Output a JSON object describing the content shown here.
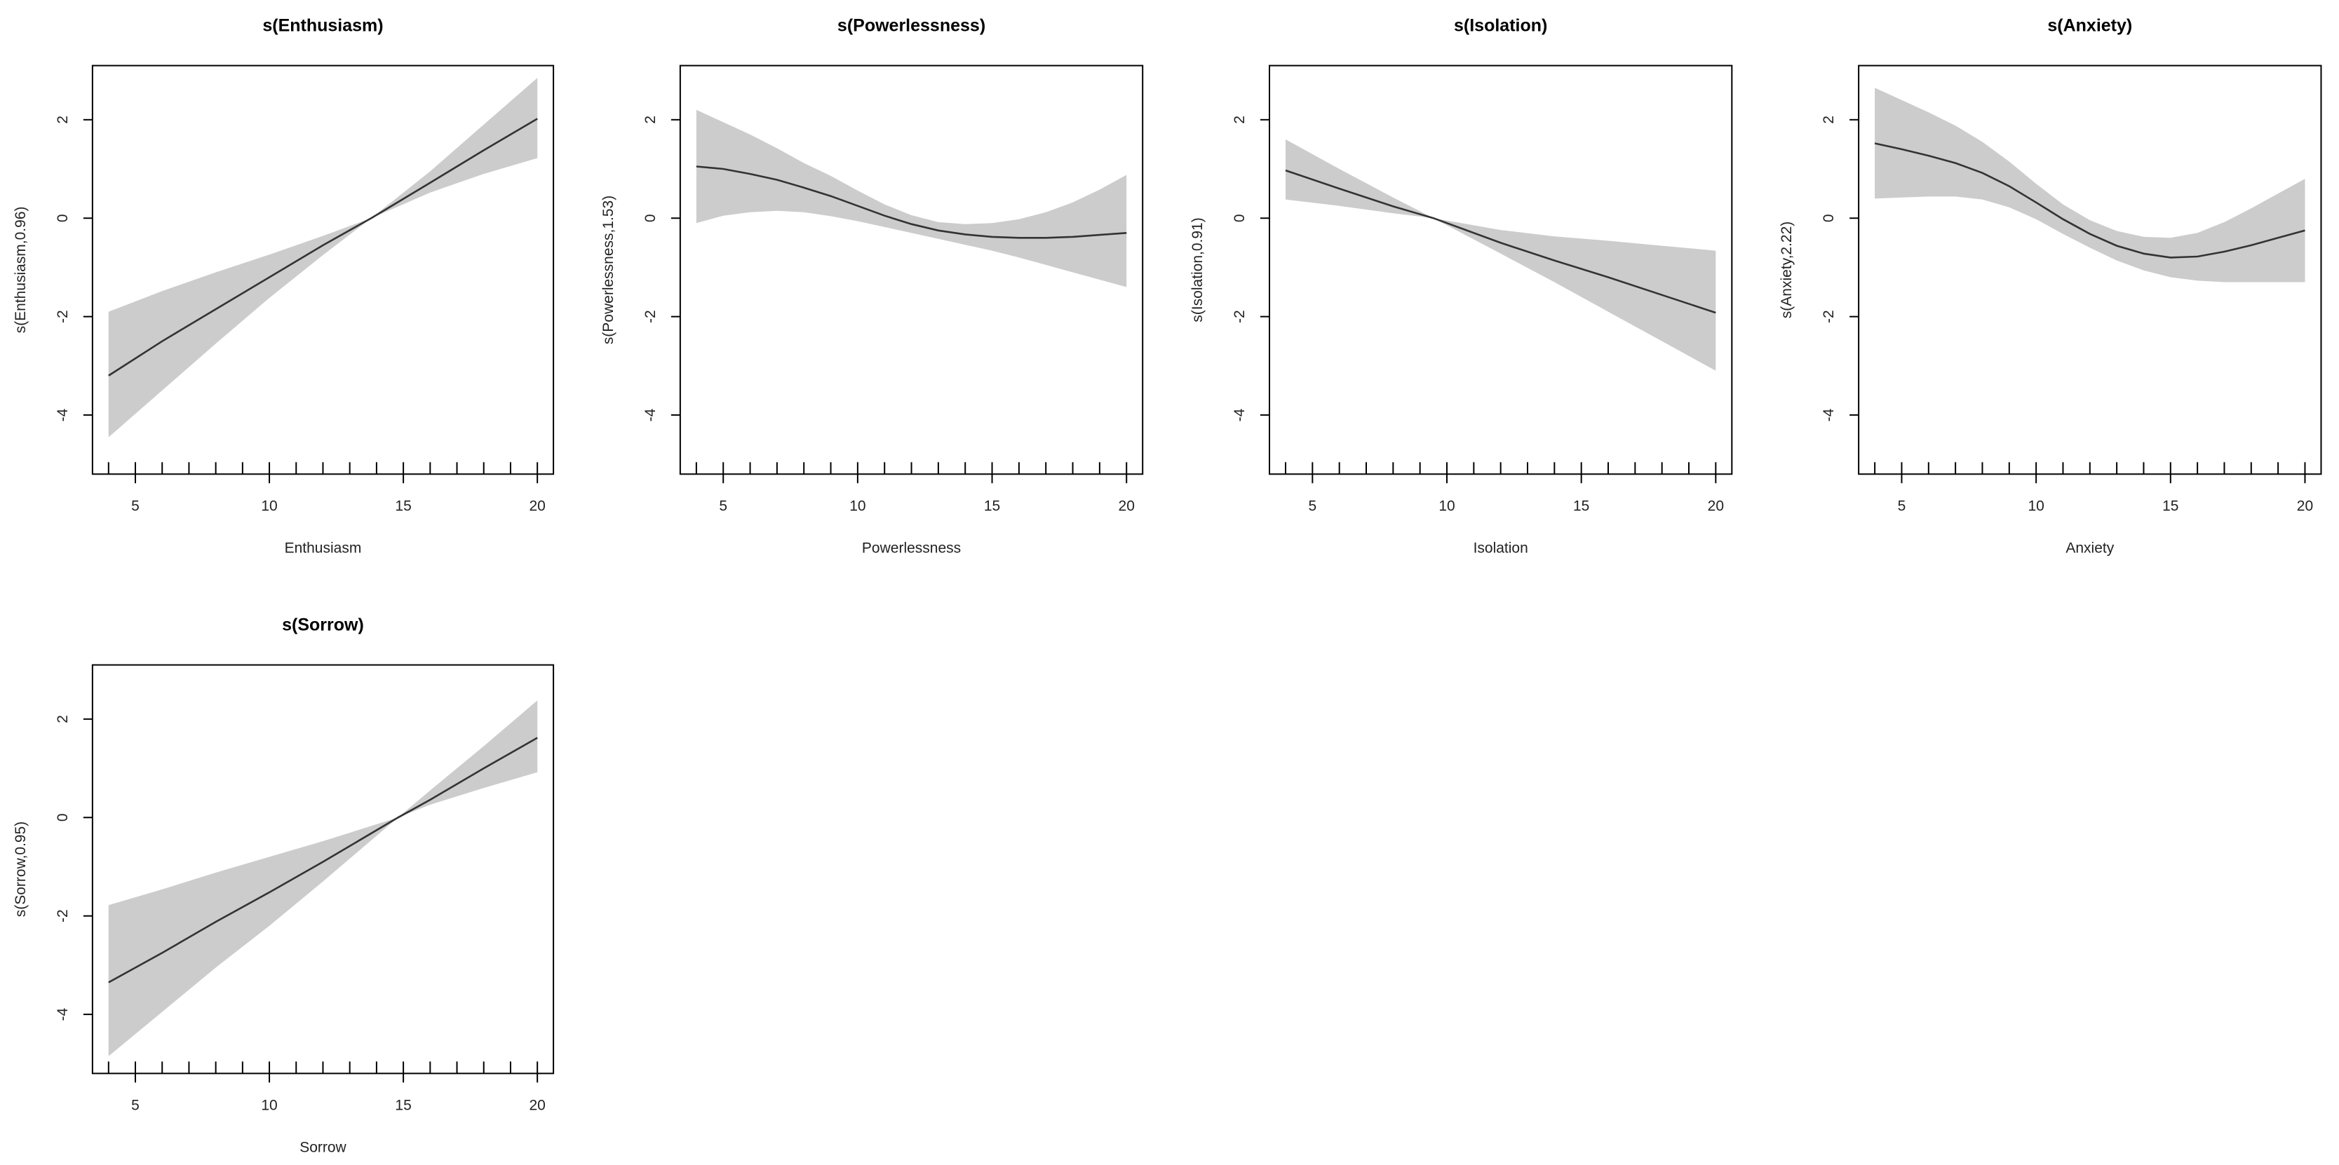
{
  "chart_data": [
    {
      "type": "line",
      "title": "s(Enthusiasm)",
      "xlabel": "Enthusiasm",
      "ylabel": "s(Enthusiasm,0.96)",
      "xlim": [
        3.4,
        20.6
      ],
      "ylim": [
        -5.2,
        3.1
      ],
      "xticks": [
        5,
        10,
        15,
        20
      ],
      "yticks": [
        -4,
        -2,
        0,
        2
      ],
      "rug": [
        4,
        5,
        6,
        7,
        8,
        9,
        10,
        11,
        12,
        13,
        14,
        15,
        16,
        17,
        18,
        19,
        20
      ],
      "x": [
        4,
        6,
        8,
        10,
        12,
        13.8,
        16,
        18,
        20
      ],
      "fit": [
        -3.2,
        -2.5,
        -1.85,
        -1.2,
        -0.55,
        0.0,
        0.72,
        1.38,
        2.02
      ],
      "lower": [
        -4.45,
        -3.5,
        -2.55,
        -1.62,
        -0.75,
        0.0,
        0.52,
        0.9,
        1.22
      ],
      "upper": [
        -1.9,
        -1.48,
        -1.1,
        -0.74,
        -0.36,
        0.0,
        0.95,
        1.9,
        2.85
      ]
    },
    {
      "type": "line",
      "title": "s(Powerlessness)",
      "xlabel": "Powerlessness",
      "ylabel": "s(Powerlessness,1.53)",
      "xlim": [
        3.4,
        20.6
      ],
      "ylim": [
        -5.2,
        3.1
      ],
      "xticks": [
        5,
        10,
        15,
        20
      ],
      "yticks": [
        -4,
        -2,
        0,
        2
      ],
      "rug": [
        4,
        5,
        6,
        7,
        8,
        9,
        10,
        11,
        12,
        13,
        14,
        15,
        16,
        17,
        18,
        19,
        20
      ],
      "x": [
        4,
        5,
        6,
        7,
        8,
        9,
        10,
        11,
        12,
        13,
        14,
        15,
        16,
        17,
        18,
        19,
        20
      ],
      "fit": [
        1.05,
        1.0,
        0.9,
        0.78,
        0.62,
        0.45,
        0.25,
        0.05,
        -0.12,
        -0.25,
        -0.33,
        -0.38,
        -0.4,
        -0.4,
        -0.38,
        -0.34,
        -0.3
      ],
      "lower": [
        -0.1,
        0.05,
        0.12,
        0.15,
        0.12,
        0.04,
        -0.06,
        -0.18,
        -0.3,
        -0.42,
        -0.54,
        -0.66,
        -0.8,
        -0.95,
        -1.1,
        -1.25,
        -1.4
      ],
      "upper": [
        2.2,
        1.95,
        1.7,
        1.42,
        1.12,
        0.86,
        0.56,
        0.28,
        0.06,
        -0.08,
        -0.12,
        -0.1,
        -0.02,
        0.12,
        0.32,
        0.58,
        0.88
      ]
    },
    {
      "type": "line",
      "title": "s(Isolation)",
      "xlabel": "Isolation",
      "ylabel": "s(Isolation,0.91)",
      "xlim": [
        3.4,
        20.6
      ],
      "ylim": [
        -5.2,
        3.1
      ],
      "xticks": [
        5,
        10,
        15,
        20
      ],
      "yticks": [
        -4,
        -2,
        0,
        2
      ],
      "rug": [
        4,
        5,
        6,
        7,
        8,
        9,
        10,
        11,
        12,
        13,
        14,
        15,
        16,
        17,
        18,
        19,
        20
      ],
      "x": [
        4,
        6,
        8,
        9.5,
        12,
        14,
        16,
        18,
        20
      ],
      "fit": [
        0.97,
        0.6,
        0.24,
        0.0,
        -0.5,
        -0.86,
        -1.2,
        -1.56,
        -1.92
      ],
      "lower": [
        0.38,
        0.25,
        0.1,
        0.0,
        -0.72,
        -1.3,
        -1.9,
        -2.5,
        -3.1
      ],
      "upper": [
        1.6,
        1.0,
        0.42,
        0.0,
        -0.24,
        -0.37,
        -0.46,
        -0.56,
        -0.66
      ]
    },
    {
      "type": "line",
      "title": "s(Anxiety)",
      "xlabel": "Anxiety",
      "ylabel": "s(Anxiety,2.22)",
      "xlim": [
        3.4,
        20.6
      ],
      "ylim": [
        -5.2,
        3.1
      ],
      "xticks": [
        5,
        10,
        15,
        20
      ],
      "yticks": [
        -4,
        -2,
        0,
        2
      ],
      "rug": [
        4,
        5,
        6,
        7,
        8,
        9,
        10,
        11,
        12,
        13,
        14,
        15,
        16,
        17,
        18,
        19,
        20
      ],
      "x": [
        4,
        5,
        6,
        7,
        8,
        9,
        10,
        11,
        12,
        13,
        14,
        15,
        16,
        17,
        18,
        19,
        20
      ],
      "fit": [
        1.52,
        1.4,
        1.27,
        1.12,
        0.92,
        0.65,
        0.32,
        -0.02,
        -0.32,
        -0.56,
        -0.72,
        -0.8,
        -0.78,
        -0.68,
        -0.55,
        -0.4,
        -0.25
      ],
      "lower": [
        0.4,
        0.42,
        0.44,
        0.44,
        0.38,
        0.22,
        -0.02,
        -0.32,
        -0.6,
        -0.86,
        -1.06,
        -1.2,
        -1.27,
        -1.3,
        -1.3,
        -1.3,
        -1.3
      ],
      "upper": [
        2.65,
        2.4,
        2.15,
        1.88,
        1.55,
        1.15,
        0.7,
        0.28,
        -0.04,
        -0.26,
        -0.38,
        -0.4,
        -0.3,
        -0.08,
        0.2,
        0.5,
        0.8
      ]
    },
    {
      "type": "line",
      "title": "s(Sorrow)",
      "xlabel": "Sorrow",
      "ylabel": "s(Sorrow,0.95)",
      "xlim": [
        3.4,
        20.6
      ],
      "ylim": [
        -5.2,
        3.1
      ],
      "xticks": [
        5,
        10,
        15,
        20
      ],
      "yticks": [
        -4,
        -2,
        0,
        2
      ],
      "rug": [
        4,
        5,
        6,
        7,
        8,
        9,
        10,
        11,
        12,
        13,
        14,
        15,
        16,
        17,
        18,
        19,
        20
      ],
      "x": [
        4,
        6,
        8,
        10,
        12,
        14.8,
        16,
        18,
        20
      ],
      "fit": [
        -3.35,
        -2.75,
        -2.12,
        -1.52,
        -0.9,
        0.0,
        0.36,
        1.0,
        1.62
      ],
      "lower": [
        -4.85,
        -3.95,
        -3.05,
        -2.2,
        -1.3,
        0.0,
        0.26,
        0.6,
        0.92
      ],
      "upper": [
        -1.78,
        -1.46,
        -1.12,
        -0.8,
        -0.48,
        0.0,
        0.55,
        1.45,
        2.38
      ]
    }
  ]
}
